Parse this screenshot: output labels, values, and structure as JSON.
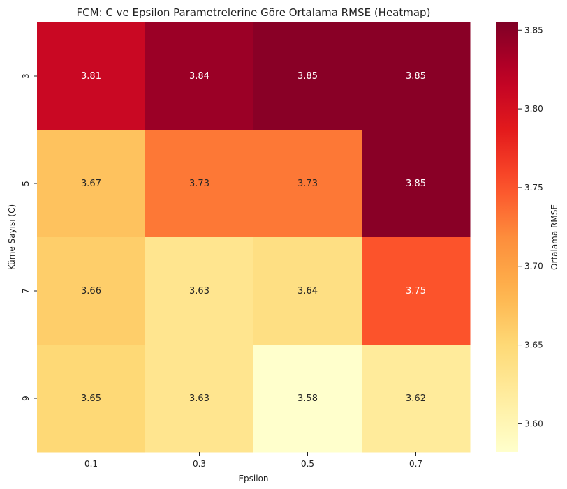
{
  "chart_data": {
    "type": "heatmap",
    "title": "FCM: C ve Epsilon Parametrelerine Göre Ortalama RMSE (Heatmap)",
    "xlabel": "Epsilon",
    "ylabel": "Küme Sayısı (C)",
    "x_categories": [
      "0.1",
      "0.3",
      "0.5",
      "0.7"
    ],
    "y_categories": [
      "3",
      "5",
      "7",
      "9"
    ],
    "values": [
      [
        3.81,
        3.84,
        3.85,
        3.85
      ],
      [
        3.67,
        3.73,
        3.73,
        3.85
      ],
      [
        3.66,
        3.63,
        3.64,
        3.75
      ],
      [
        3.65,
        3.63,
        3.58,
        3.62
      ]
    ],
    "value_labels": [
      [
        "3.81",
        "3.84",
        "3.85",
        "3.85"
      ],
      [
        "3.67",
        "3.73",
        "3.73",
        "3.85"
      ],
      [
        "3.66",
        "3.63",
        "3.64",
        "3.75"
      ],
      [
        "3.65",
        "3.63",
        "3.58",
        "3.62"
      ]
    ],
    "colormap": "YlOrRd",
    "vmin": 3.582,
    "vmax": 3.855,
    "colorbar": {
      "label": "Ortalama RMSE",
      "ticks": [
        3.6,
        3.65,
        3.7,
        3.75,
        3.8,
        3.85
      ],
      "tick_labels": [
        "3.60",
        "3.65",
        "3.70",
        "3.75",
        "3.80",
        "3.85"
      ]
    },
    "grid": false,
    "legend": "colorbar-right"
  }
}
